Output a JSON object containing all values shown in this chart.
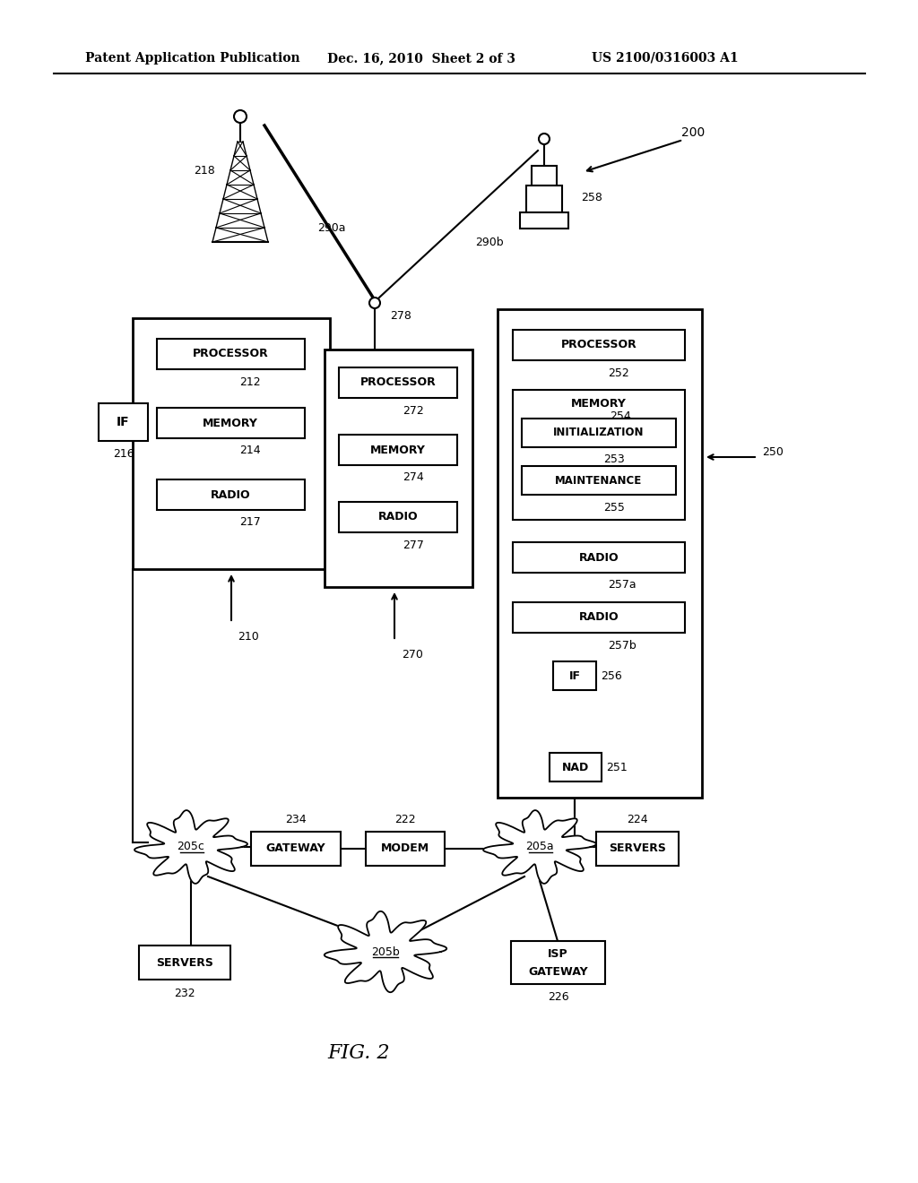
{
  "header_left": "Patent Application Publication",
  "header_mid": "Dec. 16, 2010  Sheet 2 of 3",
  "header_right": "US 2100/0316003 A1",
  "fig_caption": "FIG. 2",
  "bg": "#ffffff",
  "black": "#000000"
}
